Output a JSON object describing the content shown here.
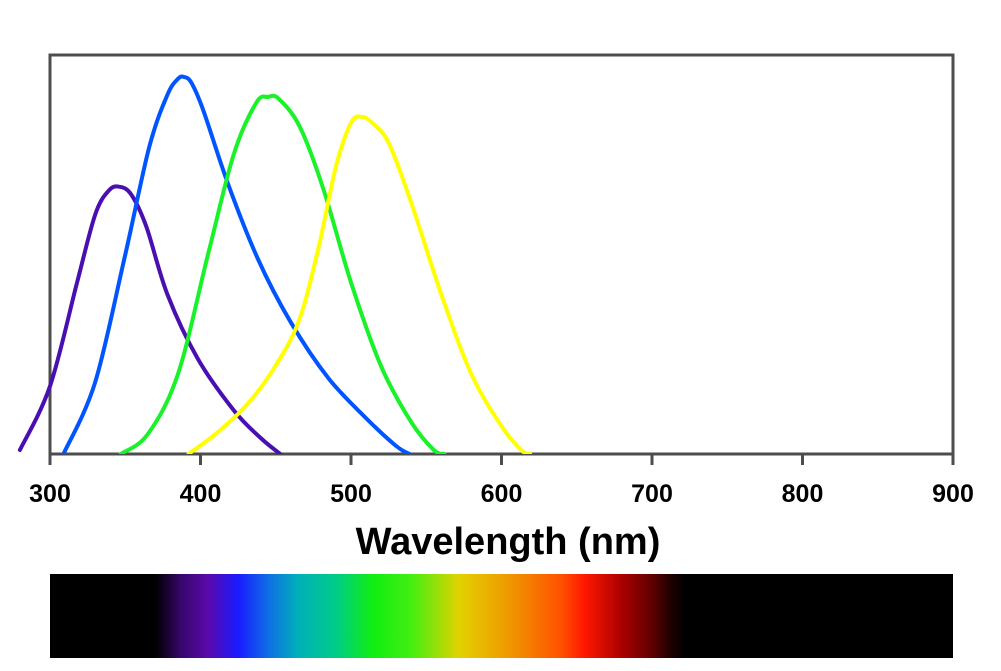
{
  "chart_data": {
    "type": "line",
    "title": "",
    "xlabel": "Wavelength (nm)",
    "ylabel": "",
    "xlim": [
      300,
      900
    ],
    "ylim": [
      0,
      1
    ],
    "grid": false,
    "legend": "none",
    "x_ticks": [
      300,
      400,
      500,
      600,
      700,
      800,
      900
    ],
    "x_tick_labels": [
      "300",
      "400",
      "500",
      "600",
      "700",
      "800",
      "900"
    ],
    "series": [
      {
        "color": "#4a0fb0",
        "points": [
          [
            280,
            0.01
          ],
          [
            300,
            0.17
          ],
          [
            318,
            0.43
          ],
          [
            330,
            0.6
          ],
          [
            339,
            0.66
          ],
          [
            346,
            0.67
          ],
          [
            354,
            0.65
          ],
          [
            364,
            0.57
          ],
          [
            378,
            0.4
          ],
          [
            398,
            0.24
          ],
          [
            422,
            0.11
          ],
          [
            440,
            0.04
          ],
          [
            453,
            0.0
          ]
        ]
      },
      {
        "color": "#0055ff",
        "points": [
          [
            309,
            0.0
          ],
          [
            330,
            0.18
          ],
          [
            350,
            0.5
          ],
          [
            366,
            0.77
          ],
          [
            378,
            0.9
          ],
          [
            385,
            0.94
          ],
          [
            389,
            0.945
          ],
          [
            394,
            0.93
          ],
          [
            402,
            0.86
          ],
          [
            418,
            0.68
          ],
          [
            438,
            0.49
          ],
          [
            460,
            0.33
          ],
          [
            485,
            0.19
          ],
          [
            510,
            0.09
          ],
          [
            530,
            0.02
          ],
          [
            539,
            0.0
          ]
        ]
      },
      {
        "color": "#19f228",
        "points": [
          [
            347,
            0.0
          ],
          [
            365,
            0.05
          ],
          [
            385,
            0.2
          ],
          [
            405,
            0.5
          ],
          [
            422,
            0.75
          ],
          [
            437,
            0.88
          ],
          [
            445,
            0.895
          ],
          [
            452,
            0.89
          ],
          [
            466,
            0.82
          ],
          [
            482,
            0.66
          ],
          [
            500,
            0.43
          ],
          [
            520,
            0.22
          ],
          [
            540,
            0.08
          ],
          [
            555,
            0.01
          ],
          [
            562,
            0.0
          ]
        ]
      },
      {
        "color": "#ffff00",
        "points": [
          [
            392,
            0.0
          ],
          [
            410,
            0.05
          ],
          [
            430,
            0.12
          ],
          [
            448,
            0.21
          ],
          [
            465,
            0.33
          ],
          [
            478,
            0.51
          ],
          [
            490,
            0.72
          ],
          [
            500,
            0.83
          ],
          [
            507,
            0.845
          ],
          [
            514,
            0.83
          ],
          [
            525,
            0.78
          ],
          [
            540,
            0.63
          ],
          [
            560,
            0.4
          ],
          [
            580,
            0.2
          ],
          [
            600,
            0.07
          ],
          [
            613,
            0.01
          ],
          [
            619,
            0.0
          ]
        ]
      }
    ],
    "spectrum_bar": {
      "x_range": [
        300,
        900
      ],
      "stops": [
        {
          "x": 300,
          "color": "#000000"
        },
        {
          "x": 370,
          "color": "#000000"
        },
        {
          "x": 388,
          "color": "#3a0670"
        },
        {
          "x": 405,
          "color": "#5a0aaa"
        },
        {
          "x": 425,
          "color": "#1a1aff"
        },
        {
          "x": 445,
          "color": "#0f6ee6"
        },
        {
          "x": 465,
          "color": "#00b0b8"
        },
        {
          "x": 490,
          "color": "#00cc88"
        },
        {
          "x": 515,
          "color": "#11ee11"
        },
        {
          "x": 540,
          "color": "#44ee11"
        },
        {
          "x": 572,
          "color": "#e2d200"
        },
        {
          "x": 605,
          "color": "#ef9800"
        },
        {
          "x": 640,
          "color": "#ff5000"
        },
        {
          "x": 655,
          "color": "#ff1800"
        },
        {
          "x": 680,
          "color": "#aa0000"
        },
        {
          "x": 700,
          "color": "#600000"
        },
        {
          "x": 712,
          "color": "#200000"
        },
        {
          "x": 722,
          "color": "#000000"
        },
        {
          "x": 900,
          "color": "#000000"
        }
      ]
    }
  }
}
